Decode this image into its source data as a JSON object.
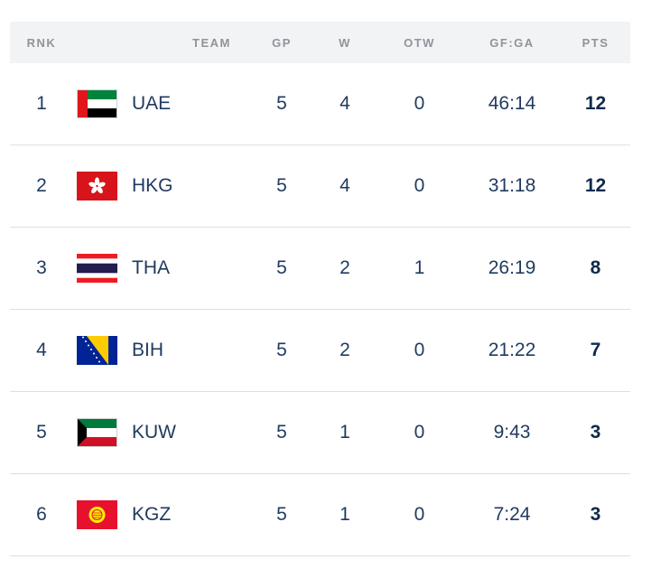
{
  "columns": {
    "rnk": "RNK",
    "team": "TEAM",
    "gp": "GP",
    "w": "W",
    "otw": "OTW",
    "gfga": "GF:GA",
    "pts": "PTS"
  },
  "rows": [
    {
      "rnk": "1",
      "team": "UAE",
      "flag": "uae-flag-icon",
      "gp": "5",
      "w": "4",
      "otw": "0",
      "gfga": "46:14",
      "pts": "12"
    },
    {
      "rnk": "2",
      "team": "HKG",
      "flag": "hkg-flag-icon",
      "gp": "5",
      "w": "4",
      "otw": "0",
      "gfga": "31:18",
      "pts": "12"
    },
    {
      "rnk": "3",
      "team": "THA",
      "flag": "tha-flag-icon",
      "gp": "5",
      "w": "2",
      "otw": "1",
      "gfga": "26:19",
      "pts": "8"
    },
    {
      "rnk": "4",
      "team": "BIH",
      "flag": "bih-flag-icon",
      "gp": "5",
      "w": "2",
      "otw": "0",
      "gfga": "21:22",
      "pts": "7"
    },
    {
      "rnk": "5",
      "team": "KUW",
      "flag": "kuw-flag-icon",
      "gp": "5",
      "w": "1",
      "otw": "0",
      "gfga": "9:43",
      "pts": "3"
    },
    {
      "rnk": "6",
      "team": "KGZ",
      "flag": "kgz-flag-icon",
      "gp": "5",
      "w": "1",
      "otw": "0",
      "gfga": "7:24",
      "pts": "3"
    }
  ],
  "colors": {
    "header_bg": "#f2f3f5",
    "header_text": "#8f949a",
    "body_text": "#1f3a5f",
    "row_divider": "#dcdfe3"
  }
}
